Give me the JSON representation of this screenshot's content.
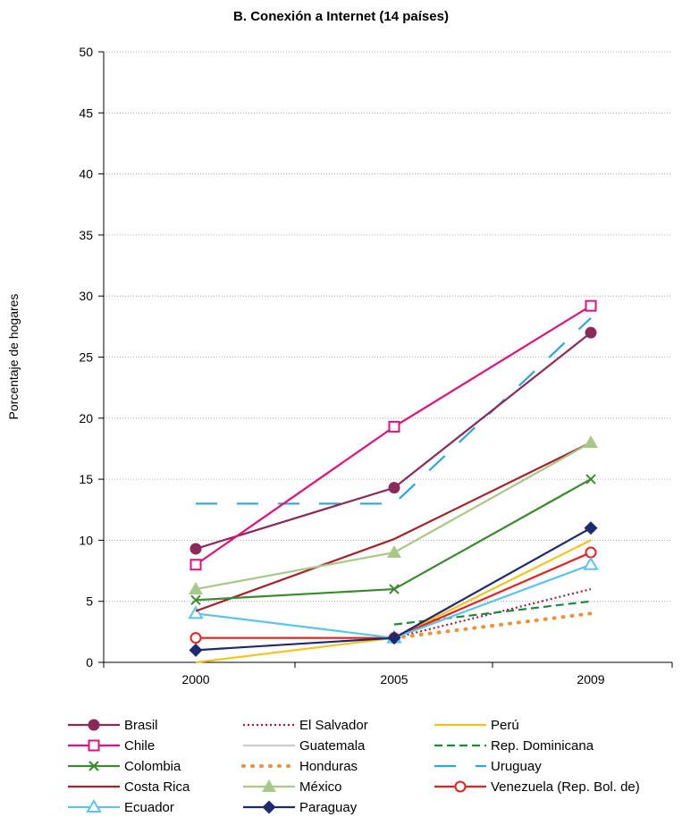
{
  "chart_data": {
    "type": "line",
    "title": "B. Conexión a Internet (14 países)",
    "xlabel": "",
    "ylabel": "Porcentaje de hogares",
    "categories": [
      "2000",
      "2005",
      "2009"
    ],
    "ylim": [
      0,
      50
    ],
    "yticks": [
      0,
      5,
      10,
      15,
      20,
      25,
      30,
      35,
      40,
      45,
      50
    ],
    "grid": "horizontal dotted",
    "legend_position": "bottom",
    "series": [
      {
        "name": "Brasil",
        "values": [
          9.3,
          14.3,
          27.0
        ],
        "color": "#8b2a5a",
        "dash": "",
        "marker": "circle-filled"
      },
      {
        "name": "Chile",
        "values": [
          8.0,
          19.3,
          29.2
        ],
        "color": "#e0127a",
        "dash": "",
        "marker": "square-open"
      },
      {
        "name": "Colombia",
        "values": [
          5.1,
          6.0,
          15.0
        ],
        "color": "#3a8a2e",
        "dash": "",
        "marker": "x"
      },
      {
        "name": "Costa Rica",
        "values": [
          4.2,
          10.1,
          18.0
        ],
        "color": "#a8202a",
        "dash": "",
        "marker": "none"
      },
      {
        "name": "Ecuador",
        "values": [
          4.0,
          2.0,
          8.0
        ],
        "color": "#5bc4e8",
        "dash": "",
        "marker": "triangle-open"
      },
      {
        "name": "El Salvador",
        "values": [
          null,
          2.0,
          6.0
        ],
        "color": "#a0203a",
        "dash": "2,3",
        "marker": "none"
      },
      {
        "name": "Guatemala",
        "values": [
          null,
          null,
          null
        ],
        "color": "#cccccc",
        "dash": "",
        "marker": "none"
      },
      {
        "name": "Honduras",
        "values": [
          null,
          2.0,
          4.0
        ],
        "color": "#f0903a",
        "dash": "1,9",
        "marker": "none"
      },
      {
        "name": "México",
        "values": [
          6.0,
          9.0,
          18.0
        ],
        "color": "#a8c888",
        "dash": "",
        "marker": "triangle-filled"
      },
      {
        "name": "Paraguay",
        "values": [
          1.0,
          2.0,
          11.0
        ],
        "color": "#1e2a6e",
        "dash": "",
        "marker": "diamond-filled"
      },
      {
        "name": "Perú",
        "values": [
          0.0,
          2.0,
          10.0
        ],
        "color": "#f5c21a",
        "dash": "",
        "marker": "none"
      },
      {
        "name": "Rep. Dominicana",
        "values": [
          null,
          3.1,
          5.0
        ],
        "color": "#1a8a3e",
        "dash": "9,5",
        "marker": "none"
      },
      {
        "name": "Uruguay",
        "values": [
          13.0,
          13.0,
          28.2
        ],
        "color": "#2aa8dc",
        "dash": "24,22",
        "marker": "none"
      },
      {
        "name": "Venezuela (Rep. Bol. de)",
        "values": [
          2.0,
          2.0,
          9.0
        ],
        "color": "#e62020",
        "dash": "",
        "marker": "circle-open"
      }
    ]
  }
}
